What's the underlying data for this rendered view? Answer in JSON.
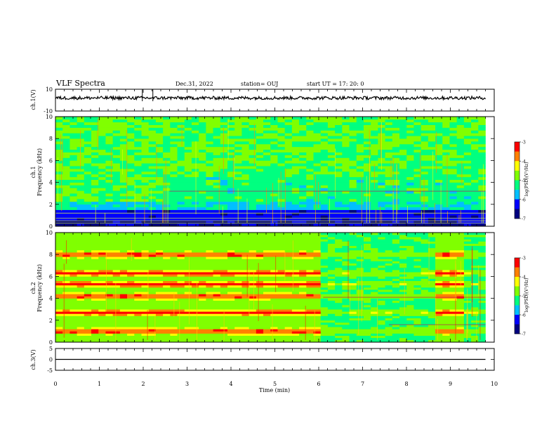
{
  "header": {
    "title": "VLF Spectra",
    "date": "Dec.31, 2022",
    "station": "station= OUJ",
    "start": "start  UT =   17: 20: 0"
  },
  "chart_data": [
    {
      "type": "line",
      "panel": "ch1-waveform",
      "ylabel": "ch.1(V)",
      "ylim": [
        -10,
        10
      ],
      "yticks": [
        "10",
        "-10"
      ],
      "x": [
        0,
        1,
        2,
        3,
        4,
        5,
        6,
        7,
        8,
        9,
        9.8
      ],
      "series": [
        {
          "values": [
            2,
            2,
            2,
            2,
            2,
            2,
            2,
            2,
            2,
            2,
            2
          ]
        }
      ],
      "spikes_min": [
        1.98,
        2.22
      ]
    },
    {
      "type": "heatmap",
      "panel": "ch1-spectrogram",
      "ylabel": "ch.1\nFrequency (kHz)",
      "ylabel_lines": [
        "ch.1",
        "Frequency (kHz)"
      ],
      "ylim": [
        0,
        10
      ],
      "yticks": [
        "0",
        "2",
        "4",
        "6",
        "8",
        "10"
      ],
      "colorbar": {
        "label": "log(PSD)(V²/Hz)",
        "range": [
          -7,
          -3
        ],
        "ticks": [
          "-3",
          "-4",
          "-5",
          "-6",
          "-7"
        ]
      },
      "levels_by_freq_khz": [
        {
          "f": [
            0,
            0.6
          ],
          "level": -6.6
        },
        {
          "f": [
            0.6,
            1.6
          ],
          "level": -6.3
        },
        {
          "f": [
            1.6,
            2.2
          ],
          "level": -5.5
        },
        {
          "f": [
            2.2,
            10
          ],
          "level": -5.0
        }
      ]
    },
    {
      "type": "heatmap",
      "panel": "ch2-spectrogram",
      "ylabel": "ch.2\nFrequency (kHz)",
      "ylabel_lines": [
        "ch.2",
        "Frequency (kHz)"
      ],
      "ylim": [
        0,
        10
      ],
      "yticks": [
        "0",
        "2",
        "4",
        "6",
        "8",
        "10"
      ],
      "colorbar": {
        "label": "log(PSD)(V²/Hz)",
        "range": [
          -7,
          -3
        ],
        "ticks": [
          "-3",
          "-4",
          "-5",
          "-6",
          "-7"
        ]
      },
      "bands_khz": [
        1.0,
        2.7,
        4.2,
        5.3,
        6.3,
        8.0
      ],
      "band_change_min": 6.1,
      "band_return_min": [
        8.7,
        9.3
      ]
    },
    {
      "type": "line",
      "panel": "ch3-waveform",
      "ylabel": "ch.3(V)",
      "ylim": [
        -5,
        5
      ],
      "yticks": [
        "5",
        "0",
        "-5"
      ],
      "x": [
        0,
        9.8
      ],
      "series": [
        {
          "values": [
            0,
            0
          ]
        }
      ]
    }
  ],
  "xaxis": {
    "label": "Time (min)",
    "range": [
      0,
      10
    ],
    "ticks": [
      "0",
      "1",
      "2",
      "3",
      "4",
      "5",
      "6",
      "7",
      "8",
      "9",
      "10"
    ]
  },
  "colors": {
    "colormap": [
      "#000080",
      "#0000ff",
      "#00c0ff",
      "#00ff80",
      "#80ff00",
      "#ffff00",
      "#ff8000",
      "#ff0000",
      "#ffffff"
    ]
  }
}
